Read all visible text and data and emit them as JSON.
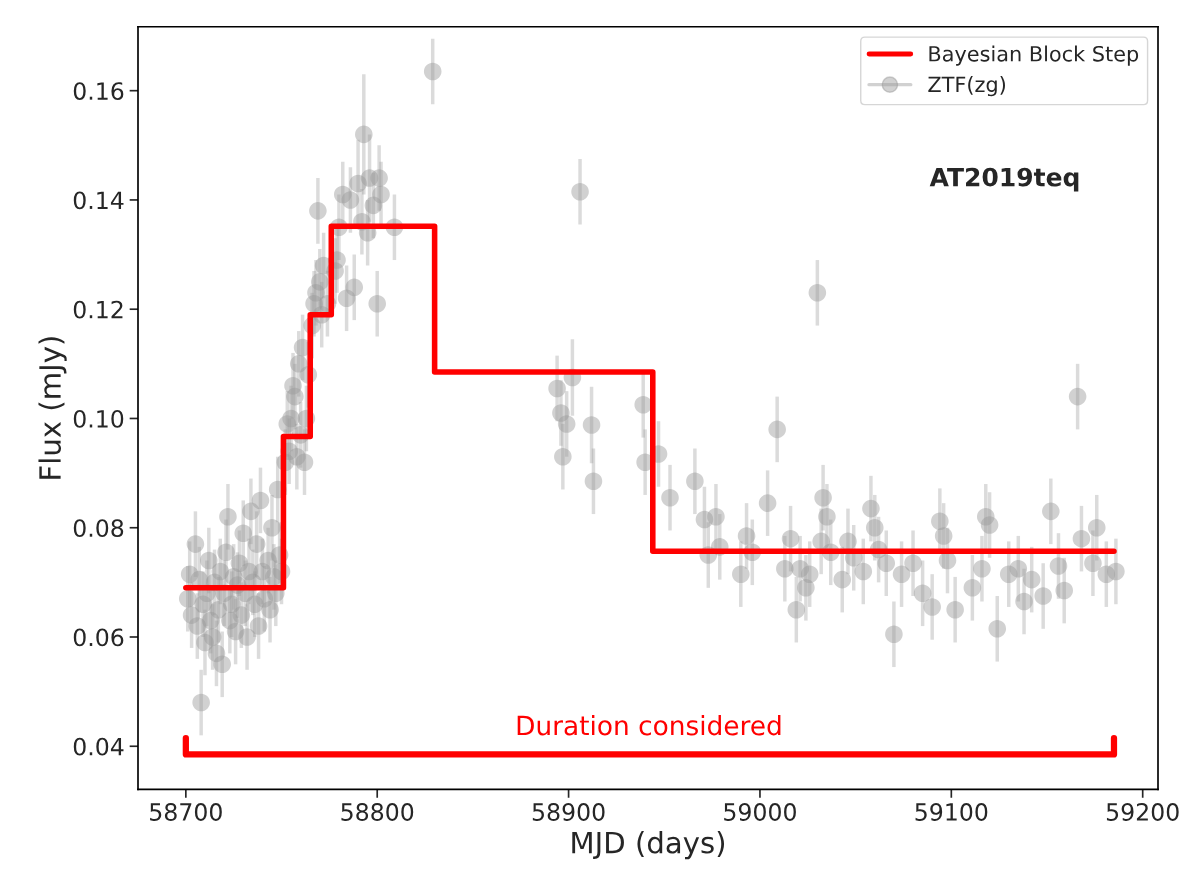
{
  "chart_data": {
    "type": "scatter",
    "xlabel": "MJD (days)",
    "ylabel": "Flux (mJy)",
    "xlim": [
      58675,
      59208
    ],
    "ylim": [
      0.0321,
      0.1717
    ],
    "xticks": [
      58700,
      58800,
      58900,
      59000,
      59100,
      59200
    ],
    "yticks": [
      {
        "value": 0.04,
        "label": "0.04"
      },
      {
        "value": 0.06,
        "label": "0.06"
      },
      {
        "value": 0.08,
        "label": "0.08"
      },
      {
        "value": 0.1,
        "label": "0.10"
      },
      {
        "value": 0.12,
        "label": "0.12"
      },
      {
        "value": 0.14,
        "label": "0.14"
      },
      {
        "value": 0.16,
        "label": "0.16"
      }
    ],
    "grid": false,
    "legend": "top right",
    "annotations": [
      "AT2019teq",
      {
        "text": "Duration considered",
        "x": 58942,
        "y": 0.0385
      }
    ],
    "series": [
      {
        "name": "Bayesian Block Step",
        "type": "step",
        "color": "#ff0000",
        "line_style": "solid",
        "x": [
          58700,
          58751,
          58765,
          58776,
          58830,
          58944,
          59185
        ],
        "values": [
          0.069,
          0.0967,
          0.119,
          0.1352,
          0.1085,
          0.0757,
          0.0757
        ]
      },
      {
        "name": "ZTF(zg)",
        "color": "#999999",
        "marker": "circle",
        "x": [
          58702,
          58701,
          58703,
          58705,
          58706,
          58707,
          58708,
          58709,
          58710,
          58711,
          58712,
          58713,
          58714,
          58715,
          58716,
          58717,
          58718,
          58719,
          58720,
          58721,
          58722,
          58723,
          58724,
          58725,
          58726,
          58727,
          58728,
          58729,
          58730,
          58731,
          58732,
          58733,
          58734,
          58735,
          58736,
          58737,
          58738,
          58739,
          58740,
          58741,
          58743,
          58744,
          58745,
          58746,
          58747,
          58748,
          58749,
          58750,
          58752,
          58753,
          58754,
          58755,
          58756,
          58757,
          58758,
          58759,
          58760,
          58761,
          58762,
          58763,
          58764,
          58766,
          58767,
          58768,
          58769,
          58770,
          58771,
          58772,
          58774,
          58779,
          58778,
          58780,
          58782,
          58784,
          58786,
          58788,
          58790,
          58792,
          58793,
          58795,
          58796,
          58798,
          58800,
          58801,
          58802,
          58809,
          58829,
          58894,
          58896,
          58897,
          58899,
          58902,
          58906,
          58912,
          58913,
          58939,
          58940,
          58947,
          58953,
          58966,
          58971,
          58973,
          58977,
          58979,
          58990,
          58993,
          58996,
          59004,
          59009,
          59013,
          59016,
          59019,
          59021,
          59024,
          59026,
          59030,
          59032,
          59033,
          59035,
          59037,
          59043,
          59046,
          59049,
          59054,
          59058,
          59060,
          59062,
          59066,
          59070,
          59074,
          59080,
          59085,
          59090,
          59094,
          59096,
          59098,
          59102,
          59111,
          59116,
          59118,
          59120,
          59124,
          59130,
          59135,
          59138,
          59142,
          59148,
          59152,
          59156,
          59159,
          59166,
          59168,
          59174,
          59176,
          59181,
          59186
        ],
        "values": [
          0.0715,
          0.067,
          0.064,
          0.077,
          0.062,
          0.0705,
          0.048,
          0.066,
          0.059,
          0.068,
          0.074,
          0.063,
          0.06,
          0.07,
          0.057,
          0.065,
          0.072,
          0.055,
          0.068,
          0.0755,
          0.082,
          0.063,
          0.066,
          0.071,
          0.061,
          0.0695,
          0.0735,
          0.064,
          0.079,
          0.068,
          0.06,
          0.072,
          0.083,
          0.07,
          0.066,
          0.077,
          0.062,
          0.085,
          0.072,
          0.067,
          0.074,
          0.065,
          0.08,
          0.071,
          0.068,
          0.087,
          0.075,
          0.072,
          0.092,
          0.099,
          0.094,
          0.1,
          0.106,
          0.104,
          0.093,
          0.11,
          0.097,
          0.113,
          0.092,
          0.1,
          0.108,
          0.117,
          0.121,
          0.123,
          0.138,
          0.125,
          0.119,
          0.128,
          0.121,
          0.129,
          0.127,
          0.135,
          0.141,
          0.122,
          0.14,
          0.124,
          0.143,
          0.136,
          0.152,
          0.134,
          0.144,
          0.139,
          0.121,
          0.144,
          0.141,
          0.135,
          0.1635,
          0.1055,
          0.101,
          0.093,
          0.099,
          0.1075,
          0.1415,
          0.0988,
          0.0885,
          0.1025,
          0.092,
          0.0935,
          0.0855,
          0.0885,
          0.0815,
          0.075,
          0.082,
          0.0765,
          0.0715,
          0.0785,
          0.0755,
          0.0845,
          0.098,
          0.0725,
          0.078,
          0.065,
          0.0725,
          0.069,
          0.0715,
          0.123,
          0.0775,
          0.0855,
          0.082,
          0.0755,
          0.0705,
          0.0775,
          0.0745,
          0.072,
          0.0835,
          0.08,
          0.076,
          0.0735,
          0.0605,
          0.0715,
          0.0735,
          0.068,
          0.0655,
          0.0812,
          0.0785,
          0.074,
          0.065,
          0.069,
          0.0725,
          0.082,
          0.0805,
          0.0615,
          0.0715,
          0.0725,
          0.0665,
          0.0705,
          0.0675,
          0.083,
          0.073,
          0.0685,
          0.104,
          0.078,
          0.0735,
          0.08,
          0.0715,
          0.072
        ],
        "errors": [
          0.006,
          0.006,
          0.006,
          0.006,
          0.006,
          0.006,
          0.006,
          0.006,
          0.006,
          0.006,
          0.006,
          0.006,
          0.006,
          0.006,
          0.006,
          0.006,
          0.006,
          0.006,
          0.006,
          0.006,
          0.006,
          0.006,
          0.006,
          0.006,
          0.006,
          0.006,
          0.006,
          0.006,
          0.006,
          0.006,
          0.006,
          0.006,
          0.006,
          0.006,
          0.006,
          0.006,
          0.006,
          0.006,
          0.006,
          0.006,
          0.006,
          0.006,
          0.006,
          0.006,
          0.006,
          0.006,
          0.006,
          0.006,
          0.006,
          0.006,
          0.006,
          0.006,
          0.006,
          0.006,
          0.006,
          0.006,
          0.006,
          0.006,
          0.006,
          0.006,
          0.006,
          0.006,
          0.006,
          0.006,
          0.006,
          0.006,
          0.006,
          0.006,
          0.006,
          0.006,
          0.006,
          0.006,
          0.006,
          0.006,
          0.006,
          0.006,
          0.008,
          0.006,
          0.011,
          0.006,
          0.008,
          0.006,
          0.006,
          0.006,
          0.006,
          0.006,
          0.006,
          0.006,
          0.006,
          0.006,
          0.006,
          0.007,
          0.006,
          0.007,
          0.006,
          0.006,
          0.006,
          0.006,
          0.006,
          0.006,
          0.006,
          0.006,
          0.006,
          0.006,
          0.006,
          0.006,
          0.006,
          0.006,
          0.006,
          0.006,
          0.006,
          0.006,
          0.006,
          0.006,
          0.006,
          0.006,
          0.006,
          0.006,
          0.006,
          0.006,
          0.006,
          0.006,
          0.006,
          0.006,
          0.006,
          0.006,
          0.006,
          0.006,
          0.006,
          0.006,
          0.006,
          0.006,
          0.006,
          0.006,
          0.006,
          0.006,
          0.006,
          0.006,
          0.006,
          0.006,
          0.006,
          0.006,
          0.006,
          0.006,
          0.006,
          0.006,
          0.006,
          0.006,
          0.006,
          0.006,
          0.006,
          0.006,
          0.006,
          0.006,
          0.006,
          0.006
        ]
      },
      {
        "type": "line",
        "color": "#ff0000",
        "x": [
          58700,
          58700,
          59185,
          59185
        ],
        "values": [
          0.0415,
          0.0385,
          0.0385,
          0.0415
        ]
      }
    ]
  }
}
